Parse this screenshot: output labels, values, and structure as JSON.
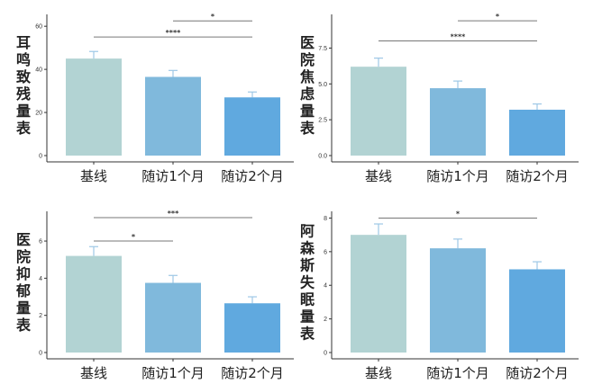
{
  "chart_data": [
    {
      "type": "bar",
      "title": "",
      "xlabel": "",
      "ylabel": "耳鸣致残量表",
      "categories": [
        "基线",
        "随访1个月",
        "随访2个月"
      ],
      "values": [
        45,
        36.5,
        27
      ],
      "error_upper": [
        48.3,
        39.5,
        29.5
      ],
      "yticks": [
        0,
        20,
        40,
        60
      ],
      "ytick_labels": [
        "0",
        "20",
        "40",
        "60"
      ],
      "ylim": [
        0,
        65.5
      ],
      "significance": [
        {
          "from": 1,
          "to": 2,
          "y": 62.5,
          "label": "*"
        },
        {
          "from": 0,
          "to": 2,
          "y": 55,
          "label": "****"
        }
      ]
    },
    {
      "type": "bar",
      "title": "",
      "xlabel": "",
      "ylabel": "医院焦虑量表",
      "categories": [
        "基线",
        "随访1个月",
        "随访2个月"
      ],
      "values": [
        6.2,
        4.7,
        3.2
      ],
      "error_upper": [
        6.8,
        5.2,
        3.6
      ],
      "yticks": [
        0,
        2.5,
        5,
        7.5
      ],
      "ytick_labels": [
        "0.0",
        "2.5",
        "5.0",
        "7.5"
      ],
      "ylim": [
        0,
        9.85
      ],
      "significance": [
        {
          "from": 1,
          "to": 2,
          "y": 9.4,
          "label": "*"
        },
        {
          "from": 0,
          "to": 2,
          "y": 8.0,
          "label": "****"
        }
      ]
    },
    {
      "type": "bar",
      "title": "",
      "xlabel": "",
      "ylabel": "医院抑郁量表",
      "categories": [
        "基线",
        "随访1个月",
        "随访2个月"
      ],
      "values": [
        5.2,
        3.75,
        2.65
      ],
      "error_upper": [
        5.7,
        4.15,
        3.0
      ],
      "yticks": [
        0,
        2,
        4,
        6
      ],
      "ytick_labels": [
        "0",
        "2",
        "4",
        "6"
      ],
      "ylim": [
        0,
        7.6
      ],
      "significance": [
        {
          "from": 0,
          "to": 2,
          "y": 7.26,
          "label": "***"
        },
        {
          "from": 0,
          "to": 1,
          "y": 6.0,
          "label": "*"
        }
      ]
    },
    {
      "type": "bar",
      "title": "",
      "xlabel": "",
      "ylabel": "阿森斯失眠量表",
      "categories": [
        "基线",
        "随访1个月",
        "随访2个月"
      ],
      "values": [
        7.0,
        6.2,
        4.95
      ],
      "error_upper": [
        7.65,
        6.75,
        5.4
      ],
      "yticks": [
        0,
        2,
        4,
        6,
        8
      ],
      "ytick_labels": [
        "0",
        "2",
        "4",
        "6",
        "8"
      ],
      "ylim": [
        0,
        8.4
      ],
      "significance": [
        {
          "from": 0,
          "to": 2,
          "y": 8.0,
          "label": "*"
        }
      ]
    }
  ],
  "colors": {
    "bars": [
      "#b2d3d3",
      "#80b9dc",
      "#60a9df"
    ],
    "error": "#9ec8e6",
    "axis": "#333333",
    "bracket": "#777777"
  }
}
